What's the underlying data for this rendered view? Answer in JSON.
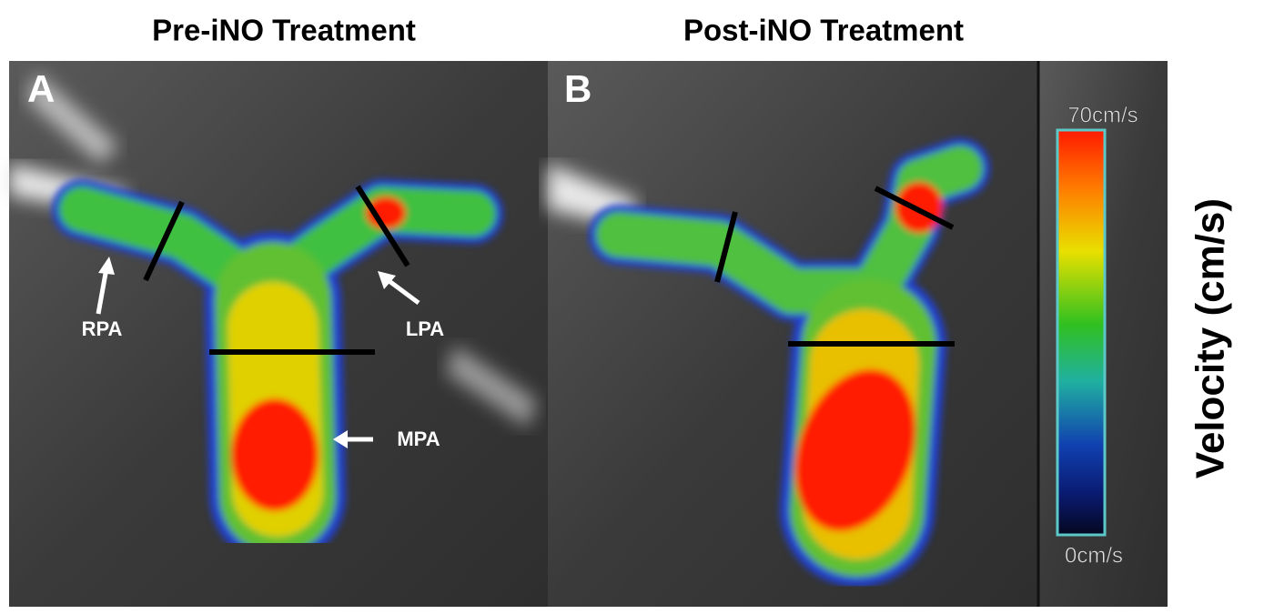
{
  "panels": [
    {
      "title": "Pre-iNO Treatment",
      "letter": "A",
      "labels": [
        "RPA",
        "LPA",
        "MPA"
      ]
    },
    {
      "title": "Post-iNO Treatment",
      "letter": "B"
    }
  ],
  "colorbar": {
    "max_label": "70cm/s",
    "min_label": "0cm/s",
    "title": "Velocity (cm/s)"
  }
}
